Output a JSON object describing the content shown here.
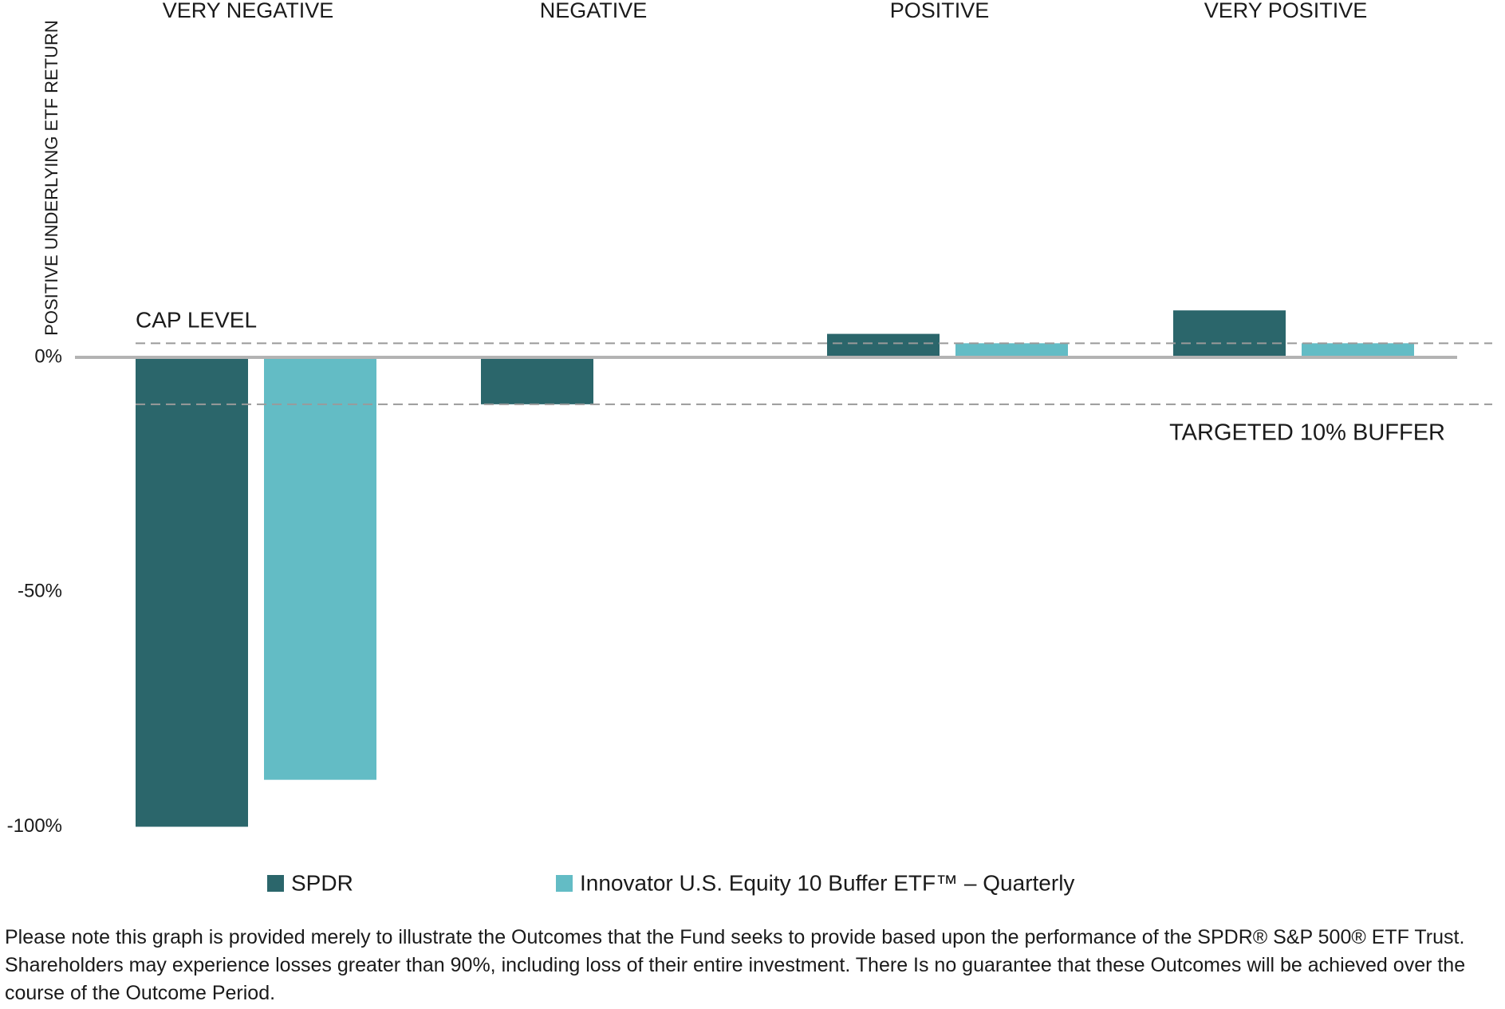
{
  "chart_data": {
    "type": "bar",
    "y_axis_label": "POSITIVE UNDERLYING ETF RETURN",
    "categories": [
      "VERY NEGATIVE",
      "NEGATIVE",
      "POSITIVE",
      "VERY POSITIVE"
    ],
    "series": [
      {
        "name": "SPDR",
        "color": "#2b666b",
        "values": [
          -100,
          -10,
          5,
          10
        ]
      },
      {
        "name": "Innovator U.S. Equity 10 Buffer ETF™ – Quarterly",
        "color": "#63bcc5",
        "values": [
          -90,
          0,
          3,
          3
        ]
      }
    ],
    "ylim": [
      -100,
      70
    ],
    "yticks": [
      {
        "value": -100,
        "label": "-100%"
      },
      {
        "value": -50,
        "label": "-50%"
      },
      {
        "value": 0,
        "label": "0%"
      }
    ],
    "reference_lines": [
      {
        "value": 3,
        "label": "CAP LEVEL"
      },
      {
        "value": -10,
        "label": "TARGETED 10% BUFFER"
      }
    ],
    "footnote": "Please note this graph is provided merely to illustrate the Outcomes that the Fund seeks to provide based upon the performance of the SPDR® S&P 500® ETF Trust. Shareholders may experience losses greater than 90%, including loss of their entire investment. There Is no guarantee that these Outcomes will be achieved over the course of the Outcome Period."
  }
}
